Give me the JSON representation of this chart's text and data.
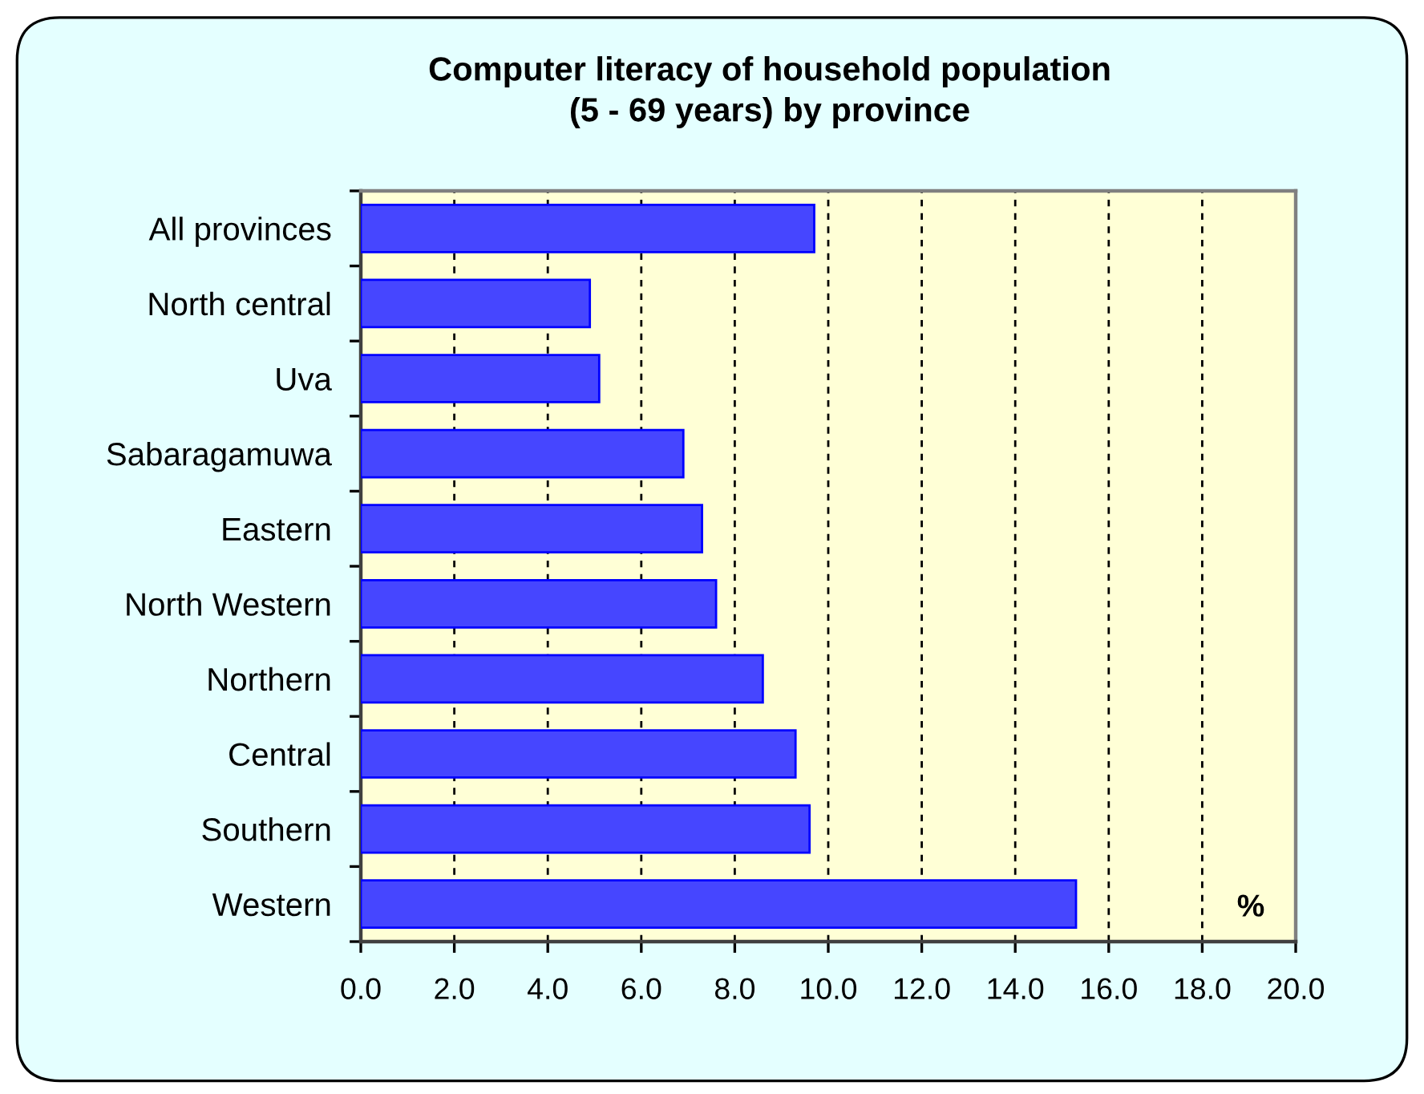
{
  "chart_data": {
    "type": "bar",
    "orientation": "horizontal",
    "title": "Computer literacy of household population\n(5 - 69 years) by province",
    "categories": [
      "All provinces",
      "North central",
      "Uva",
      "Sabaragamuwa",
      "Eastern",
      "North Western",
      "Northern",
      "Central",
      "Southern",
      "Western"
    ],
    "values": [
      9.7,
      4.9,
      5.1,
      6.9,
      7.3,
      7.6,
      8.6,
      9.3,
      9.6,
      15.3
    ],
    "color": "#4646ff",
    "xlim": [
      0,
      20
    ],
    "xticks": [
      {
        "value": 0,
        "label": "0.0"
      },
      {
        "value": 2,
        "label": "2.0"
      },
      {
        "value": 4,
        "label": "4.0"
      },
      {
        "value": 6,
        "label": "6.0"
      },
      {
        "value": 8,
        "label": "8.0"
      },
      {
        "value": 10,
        "label": "10.0"
      },
      {
        "value": 12,
        "label": "12.0"
      },
      {
        "value": 14,
        "label": "14.0"
      },
      {
        "value": 16,
        "label": "16.0"
      },
      {
        "value": 18,
        "label": "18.0"
      },
      {
        "value": 20,
        "label": "20.0"
      }
    ],
    "annotations": [
      "%"
    ],
    "grid": "x",
    "line_style": "dashed",
    "legend": false
  }
}
